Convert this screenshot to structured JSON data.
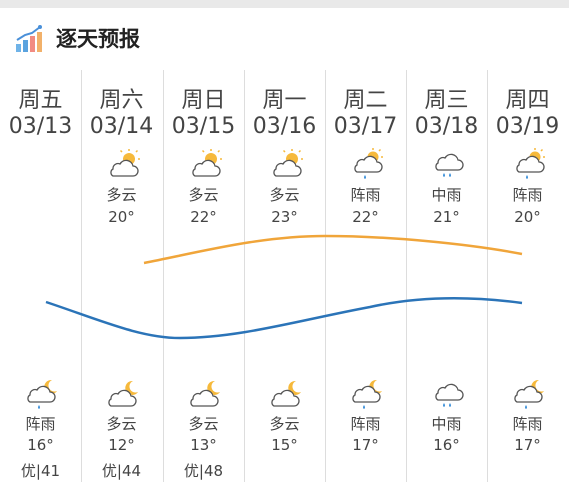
{
  "header": {
    "title": "逐天预报",
    "icon": "bar-chart-icon"
  },
  "colors": {
    "high_line": "#F0A53A",
    "low_line": "#2B74B8",
    "divider": "#dddddd"
  },
  "days": [
    {
      "name": "周五",
      "date": "03/13",
      "day_cond": "",
      "day_icon": "",
      "high": "",
      "night_icon": "moon-rain-icon",
      "night_cond": "阵雨",
      "low": "16°",
      "aqi": "优|41"
    },
    {
      "name": "周六",
      "date": "03/14",
      "day_cond": "多云",
      "day_icon": "sun-cloud-icon",
      "high": "20°",
      "night_icon": "moon-cloud-icon",
      "night_cond": "多云",
      "low": "12°",
      "aqi": "优|44"
    },
    {
      "name": "周日",
      "date": "03/15",
      "day_cond": "多云",
      "day_icon": "sun-cloud-icon",
      "high": "22°",
      "night_icon": "moon-cloud-icon",
      "night_cond": "多云",
      "low": "13°",
      "aqi": "优|48"
    },
    {
      "name": "周一",
      "date": "03/16",
      "day_cond": "多云",
      "day_icon": "sun-cloud-icon",
      "high": "23°",
      "night_icon": "moon-cloud-icon",
      "night_cond": "多云",
      "low": "15°",
      "aqi": ""
    },
    {
      "name": "周二",
      "date": "03/17",
      "day_cond": "阵雨",
      "day_icon": "sun-rain-icon",
      "high": "22°",
      "night_icon": "moon-rain-icon",
      "night_cond": "阵雨",
      "low": "17°",
      "aqi": ""
    },
    {
      "name": "周三",
      "date": "03/18",
      "day_cond": "中雨",
      "day_icon": "rain-icon",
      "high": "21°",
      "night_icon": "rain-icon",
      "night_cond": "中雨",
      "low": "16°",
      "aqi": ""
    },
    {
      "name": "周四",
      "date": "03/19",
      "day_cond": "阵雨",
      "day_icon": "sun-rain-icon",
      "high": "20°",
      "night_icon": "moon-rain-icon",
      "night_cond": "阵雨",
      "low": "17°",
      "aqi": ""
    }
  ]
}
